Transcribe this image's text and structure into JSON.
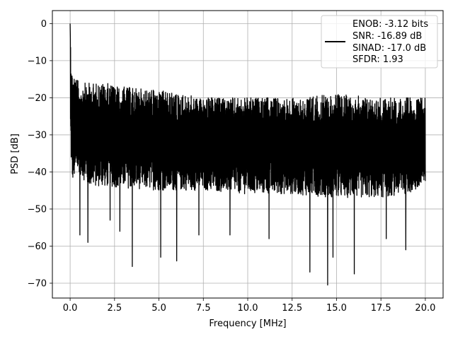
{
  "chart_data": {
    "type": "line",
    "title": "",
    "xlabel": "Frequency [MHz]",
    "ylabel": "PSD [dB]",
    "xlim": [
      -1.0,
      21.0
    ],
    "ylim": [
      -74.0,
      3.5
    ],
    "x_ticks": [
      0.0,
      2.5,
      5.0,
      7.5,
      10.0,
      12.5,
      15.0,
      17.5,
      20.0
    ],
    "x_tick_labels": [
      "0.0",
      "2.5",
      "5.0",
      "7.5",
      "10.0",
      "12.5",
      "15.0",
      "17.5",
      "20.0"
    ],
    "y_ticks": [
      0,
      -10,
      -20,
      -30,
      -40,
      -50,
      -60,
      -70
    ],
    "y_tick_labels": [
      "0",
      "−10",
      "−20",
      "−30",
      "−40",
      "−50",
      "−60",
      "−70"
    ],
    "grid": true,
    "legend": {
      "placement": "top-right",
      "entries": [
        "ENOB: -3.12 bits",
        "SNR: -16.89 dB",
        "SINAD: -17.0 dB",
        "SFDR: 1.93"
      ]
    },
    "series": [
      {
        "color": "#000000",
        "description": "noise-like PSD trace from 0 to 20 MHz",
        "peak": {
          "x": 0.0,
          "y": 0.0
        },
        "envelope_upper": [
          [
            0.0,
            0.0
          ],
          [
            0.1,
            -12
          ],
          [
            0.5,
            -16
          ],
          [
            1.0,
            -16
          ],
          [
            2.0,
            -16
          ],
          [
            3.0,
            -17
          ],
          [
            5.0,
            -18
          ],
          [
            7.5,
            -20
          ],
          [
            10.0,
            -20
          ],
          [
            12.5,
            -20
          ],
          [
            15.0,
            -19
          ],
          [
            17.5,
            -20
          ],
          [
            20.0,
            -20
          ]
        ],
        "envelope_lower": [
          [
            0.0,
            -30
          ],
          [
            0.1,
            -43
          ],
          [
            0.5,
            -40
          ],
          [
            1.0,
            -44
          ],
          [
            2.0,
            -44
          ],
          [
            5.0,
            -45
          ],
          [
            7.5,
            -45
          ],
          [
            10.0,
            -46
          ],
          [
            12.5,
            -46
          ],
          [
            15.0,
            -47
          ],
          [
            17.5,
            -47
          ],
          [
            20.0,
            -45
          ]
        ],
        "dips": [
          [
            0.55,
            -57
          ],
          [
            1.0,
            -59
          ],
          [
            2.25,
            -53
          ],
          [
            2.8,
            -56
          ],
          [
            3.5,
            -65.5
          ],
          [
            5.1,
            -63
          ],
          [
            6.0,
            -64
          ],
          [
            7.25,
            -57
          ],
          [
            9.0,
            -57
          ],
          [
            11.2,
            -58
          ],
          [
            13.5,
            -67
          ],
          [
            14.5,
            -70.5
          ],
          [
            14.8,
            -63
          ],
          [
            16.0,
            -67.5
          ],
          [
            17.8,
            -58
          ],
          [
            18.9,
            -61
          ]
        ]
      }
    ]
  }
}
